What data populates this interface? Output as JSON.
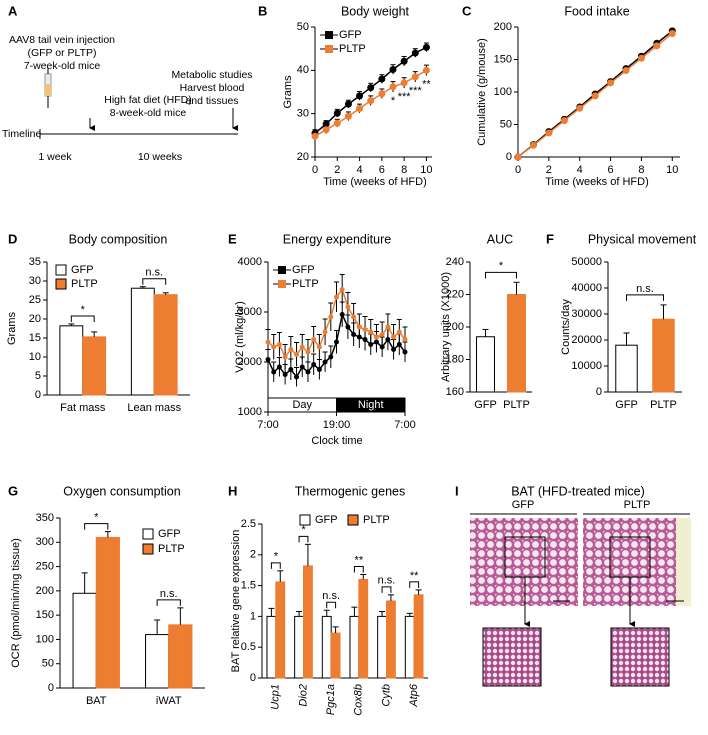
{
  "panel_a": {
    "label": "A",
    "injection": "AAV8 tail vein injection",
    "vectors": "(GFP or PLTP)",
    "age_start": "7-week-old mice",
    "diet": "High fat diet (HFD)",
    "age_diet": "8-week-old mice",
    "studies": "Metabolic studies",
    "harvest": "Harvest blood",
    "harvest2": "and tissues",
    "timeline": "Timeline",
    "period1": "1 week",
    "period2": "10 weeks"
  },
  "chart_data": [
    {
      "panel": "B",
      "type": "line",
      "title": "Body weight",
      "x_label": "Time (weeks of HFD)",
      "y_label": "Grams",
      "x": [
        0,
        1,
        2,
        3,
        4,
        5,
        6,
        7,
        8,
        9,
        10
      ],
      "series": [
        {
          "name": "GFP",
          "color": "#000000",
          "values": [
            25.5,
            27.6,
            30.1,
            32.2,
            34.1,
            36.0,
            38.0,
            40.2,
            42.1,
            44.0,
            45.3
          ],
          "errors": [
            0.8,
            0.8,
            0.9,
            0.9,
            1.0,
            1.0,
            1.0,
            1.1,
            1.1,
            1.0,
            1.0
          ]
        },
        {
          "name": "PLTP",
          "color": "#ed7d31",
          "values": [
            24.8,
            26.3,
            27.8,
            29.4,
            31.2,
            33.0,
            34.6,
            36.2,
            37.1,
            38.5,
            40.0
          ],
          "errors": [
            0.8,
            0.9,
            0.9,
            1.0,
            1.0,
            1.1,
            1.1,
            1.2,
            1.2,
            1.2,
            1.2
          ]
        }
      ],
      "xlim": [
        0,
        10.5
      ],
      "xticks": [
        0,
        2,
        4,
        6,
        8,
        10
      ],
      "ylim": [
        20,
        50
      ],
      "yticks": [
        20,
        30,
        40,
        50
      ],
      "legend": "upper left",
      "annotations": [
        {
          "x": 7,
          "text": "*"
        },
        {
          "x": 8,
          "text": "***"
        },
        {
          "x": 9,
          "text": "***"
        },
        {
          "x": 10,
          "text": "**"
        }
      ]
    },
    {
      "panel": "C",
      "type": "line",
      "title": "Food intake",
      "x_label": "Time (weeks of HFD)",
      "y_label": "Cumulative (g/mouse)",
      "x": [
        0,
        1,
        2,
        3,
        4,
        5,
        6,
        7,
        8,
        9,
        10
      ],
      "series": [
        {
          "name": "GFP",
          "color": "#000000",
          "values": [
            0,
            19,
            39,
            58,
            77,
            97,
            116,
            136,
            155,
            175,
            194
          ]
        },
        {
          "name": "PLTP",
          "color": "#ed7d31",
          "values": [
            0,
            18,
            37,
            56,
            75,
            94,
            114,
            133,
            152,
            171,
            190
          ]
        }
      ],
      "xlim": [
        0,
        10.5
      ],
      "xticks": [
        0,
        2,
        4,
        6,
        8,
        10
      ],
      "ylim": [
        0,
        200
      ],
      "yticks": [
        0,
        50,
        100,
        150,
        200
      ]
    },
    {
      "panel": "D",
      "type": "bar",
      "title": "Body composition",
      "y_label": "Grams",
      "categories": [
        "Fat mass",
        "Lean mass"
      ],
      "series": [
        {
          "name": "GFP",
          "color": "#ffffff",
          "values": [
            18.2,
            28.1
          ],
          "errors": [
            0.5,
            0.4
          ]
        },
        {
          "name": "PLTP",
          "color": "#ed7d31",
          "values": [
            15.3,
            26.4
          ],
          "errors": [
            1.3,
            0.5
          ]
        }
      ],
      "ylim": [
        0,
        35
      ],
      "yticks": [
        0,
        5,
        10,
        15,
        20,
        25,
        30,
        35
      ],
      "legend": "upper left",
      "significance": [
        "*",
        "n.s."
      ]
    },
    {
      "panel": "E",
      "type": "line",
      "title": "Energy expenditure",
      "x_label": "Clock time",
      "y_label": "VO2 (ml/kg/hr)",
      "x": [
        0,
        1,
        2,
        3,
        4,
        5,
        6,
        7,
        8,
        9,
        10,
        11,
        12,
        13,
        14,
        15,
        16,
        17,
        18,
        19,
        20,
        21,
        22,
        23,
        24
      ],
      "series": [
        {
          "name": "GFP",
          "color": "#000000",
          "values": [
            2050,
            1800,
            1900,
            1750,
            1850,
            1700,
            1900,
            1800,
            1950,
            1850,
            2000,
            2100,
            2400,
            2950,
            2700,
            2550,
            2500,
            2450,
            2350,
            2400,
            2300,
            2450,
            2250,
            2350,
            2200
          ],
          "errors": [
            200,
            200,
            190,
            200,
            210,
            190,
            200,
            200,
            210,
            200,
            200,
            220,
            230,
            250,
            240,
            230,
            220,
            220,
            210,
            210,
            200,
            210,
            200,
            210,
            200
          ]
        },
        {
          "name": "PLTP",
          "color": "#ed7d31",
          "values": [
            2400,
            2300,
            2350,
            2100,
            2250,
            2150,
            2300,
            2200,
            2450,
            2300,
            2600,
            2900,
            3300,
            3450,
            3100,
            2900,
            2700,
            2650,
            2600,
            2500,
            2550,
            2700,
            2500,
            2600,
            2450
          ],
          "errors": [
            250,
            250,
            240,
            250,
            260,
            240,
            250,
            250,
            260,
            250,
            260,
            280,
            300,
            300,
            290,
            270,
            260,
            260,
            250,
            250,
            250,
            260,
            250,
            250,
            250
          ]
        }
      ],
      "xlim": [
        0,
        24
      ],
      "xticks": [
        {
          "value": 0,
          "label": "7:00"
        },
        {
          "value": 12,
          "label": "19:00"
        },
        {
          "value": 24,
          "label": "7:00"
        }
      ],
      "ylim": [
        1000,
        4000
      ],
      "yticks": [
        1000,
        2000,
        3000,
        4000
      ],
      "legend": "upper left",
      "phases": [
        {
          "label": "Day",
          "start": 0,
          "end": 12,
          "color": "#ffffff"
        },
        {
          "label": "Night",
          "start": 12,
          "end": 24,
          "color": "#000000"
        }
      ]
    },
    {
      "type": "bar",
      "title": "AUC",
      "y_label": "Arbitrary units (X1000)",
      "categories": [
        "GFP",
        "PLTP"
      ],
      "values": [
        194,
        220
      ],
      "errors": [
        4.5,
        7.5
      ],
      "colors": [
        "#ffffff",
        "#ed7d31"
      ],
      "ylim": [
        160,
        240
      ],
      "yticks": [
        160,
        180,
        200,
        220,
        240
      ],
      "significance": "*"
    },
    {
      "panel": "F",
      "type": "bar",
      "title": "Physical movement",
      "y_label": "Counts/day",
      "categories": [
        "GFP",
        "PLTP"
      ],
      "values": [
        18000,
        28000
      ],
      "errors": [
        4700,
        5500
      ],
      "colors": [
        "#ffffff",
        "#ed7d31"
      ],
      "ylim": [
        0,
        50000
      ],
      "yticks": [
        0,
        10000,
        20000,
        30000,
        40000,
        50000
      ],
      "significance": "n.s."
    },
    {
      "panel": "G",
      "type": "bar",
      "title": "Oxygen consumption",
      "y_label": "OCR (pmol/min/mg tissue)",
      "categories": [
        "BAT",
        "iWAT"
      ],
      "series": [
        {
          "name": "GFP",
          "color": "#ffffff",
          "values": [
            195,
            110
          ],
          "errors": [
            42,
            30
          ]
        },
        {
          "name": "PLTP",
          "color": "#ed7d31",
          "values": [
            310,
            130
          ],
          "errors": [
            12,
            35
          ]
        }
      ],
      "ylim": [
        0,
        350
      ],
      "yticks": [
        0,
        50,
        100,
        150,
        200,
        250,
        300,
        350
      ],
      "legend": "upper right",
      "significance": [
        "*",
        "n.s."
      ]
    },
    {
      "panel": "H",
      "type": "bar",
      "title": "Thermogenic genes",
      "y_label": "BAT relative gene expression",
      "categories": [
        "Ucp1",
        "Dio2",
        "Pgc1a",
        "Cox8b",
        "Cytb",
        "Atp6"
      ],
      "series": [
        {
          "name": "GFP",
          "color": "#ffffff",
          "values": [
            1.0,
            1.0,
            1.0,
            1.0,
            1.0,
            1.0
          ],
          "errors": [
            0.13,
            0.08,
            0.1,
            0.15,
            0.08,
            0.05
          ]
        },
        {
          "name": "PLTP",
          "color": "#ed7d31",
          "values": [
            1.56,
            1.82,
            0.73,
            1.6,
            1.25,
            1.35
          ],
          "errors": [
            0.18,
            0.35,
            0.1,
            0.08,
            0.1,
            0.08
          ]
        }
      ],
      "ylim": [
        0,
        2.5
      ],
      "yticks": [
        0,
        0.5,
        1,
        1.5,
        2,
        2.5
      ],
      "legend": "upper center",
      "significance": [
        "*",
        "*",
        "n.s.",
        "**",
        "n.s.",
        "**"
      ]
    }
  ],
  "panel_i": {
    "label": "I",
    "title": "BAT (HFD-treated mice)",
    "left": "GFP",
    "right": "PLTP"
  }
}
